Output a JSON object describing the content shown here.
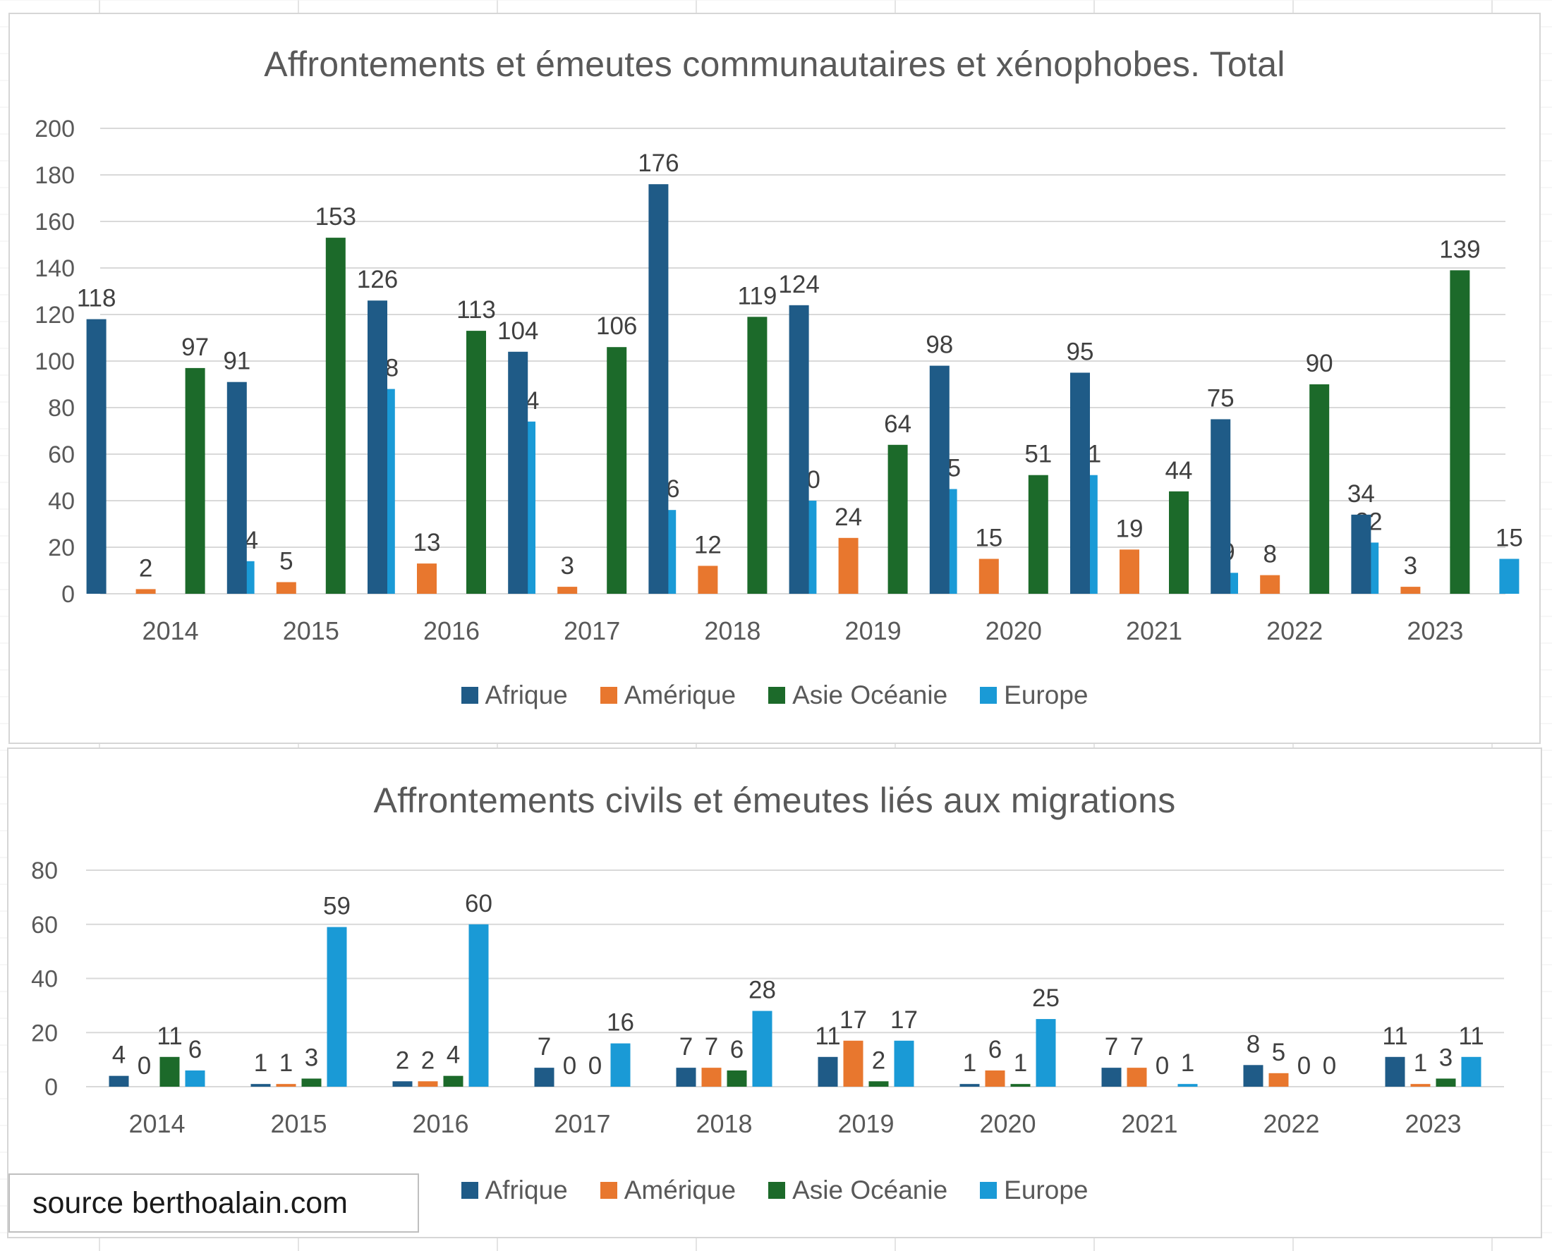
{
  "chart_data": [
    {
      "type": "bar",
      "title": "Affrontements et émeutes communautaires et xénophobes. Total",
      "categories": [
        "2014",
        "2015",
        "2016",
        "2017",
        "2018",
        "2019",
        "2020",
        "2021",
        "2022",
        "2023"
      ],
      "ylim": [
        0,
        200
      ],
      "yticks": [
        0,
        20,
        40,
        60,
        80,
        100,
        120,
        140,
        160,
        180,
        200
      ],
      "grid": true,
      "legend_position": "bottom",
      "series": [
        {
          "name": "Afrique",
          "color": "#1f5b87",
          "values": [
            118,
            91,
            126,
            104,
            176,
            124,
            98,
            95,
            75,
            34
          ]
        },
        {
          "name": "Amérique",
          "color": "#e8772e",
          "values": [
            2,
            5,
            13,
            3,
            12,
            24,
            15,
            19,
            8,
            3
          ]
        },
        {
          "name": "Asie Océanie",
          "color": "#1c6a2a",
          "values": [
            97,
            153,
            113,
            106,
            119,
            64,
            51,
            44,
            90,
            139
          ]
        },
        {
          "name": "Europe",
          "color": "#1a9ad6",
          "values": [
            14,
            88,
            74,
            36,
            40,
            45,
            51,
            9,
            22,
            15
          ]
        }
      ]
    },
    {
      "type": "bar",
      "title": "Affrontements civils et émeutes liés aux migrations",
      "categories": [
        "2014",
        "2015",
        "2016",
        "2017",
        "2018",
        "2019",
        "2020",
        "2021",
        "2022",
        "2023"
      ],
      "ylim": [
        0,
        80
      ],
      "yticks": [
        0,
        20,
        40,
        60,
        80
      ],
      "grid": true,
      "legend_position": "bottom",
      "series": [
        {
          "name": "Afrique",
          "color": "#1f5b87",
          "values": [
            4,
            1,
            2,
            7,
            7,
            11,
            1,
            7,
            8,
            11
          ]
        },
        {
          "name": "Amérique",
          "color": "#e8772e",
          "values": [
            0,
            1,
            2,
            0,
            7,
            17,
            6,
            7,
            5,
            1
          ]
        },
        {
          "name": "Asie Océanie",
          "color": "#1c6a2a",
          "values": [
            11,
            3,
            4,
            0,
            6,
            2,
            1,
            0,
            0,
            3
          ]
        },
        {
          "name": "Europe",
          "color": "#1a9ad6",
          "values": [
            6,
            59,
            60,
            16,
            28,
            17,
            25,
            1,
            0,
            11
          ]
        }
      ]
    }
  ],
  "source_text": "source berthoalain.com"
}
